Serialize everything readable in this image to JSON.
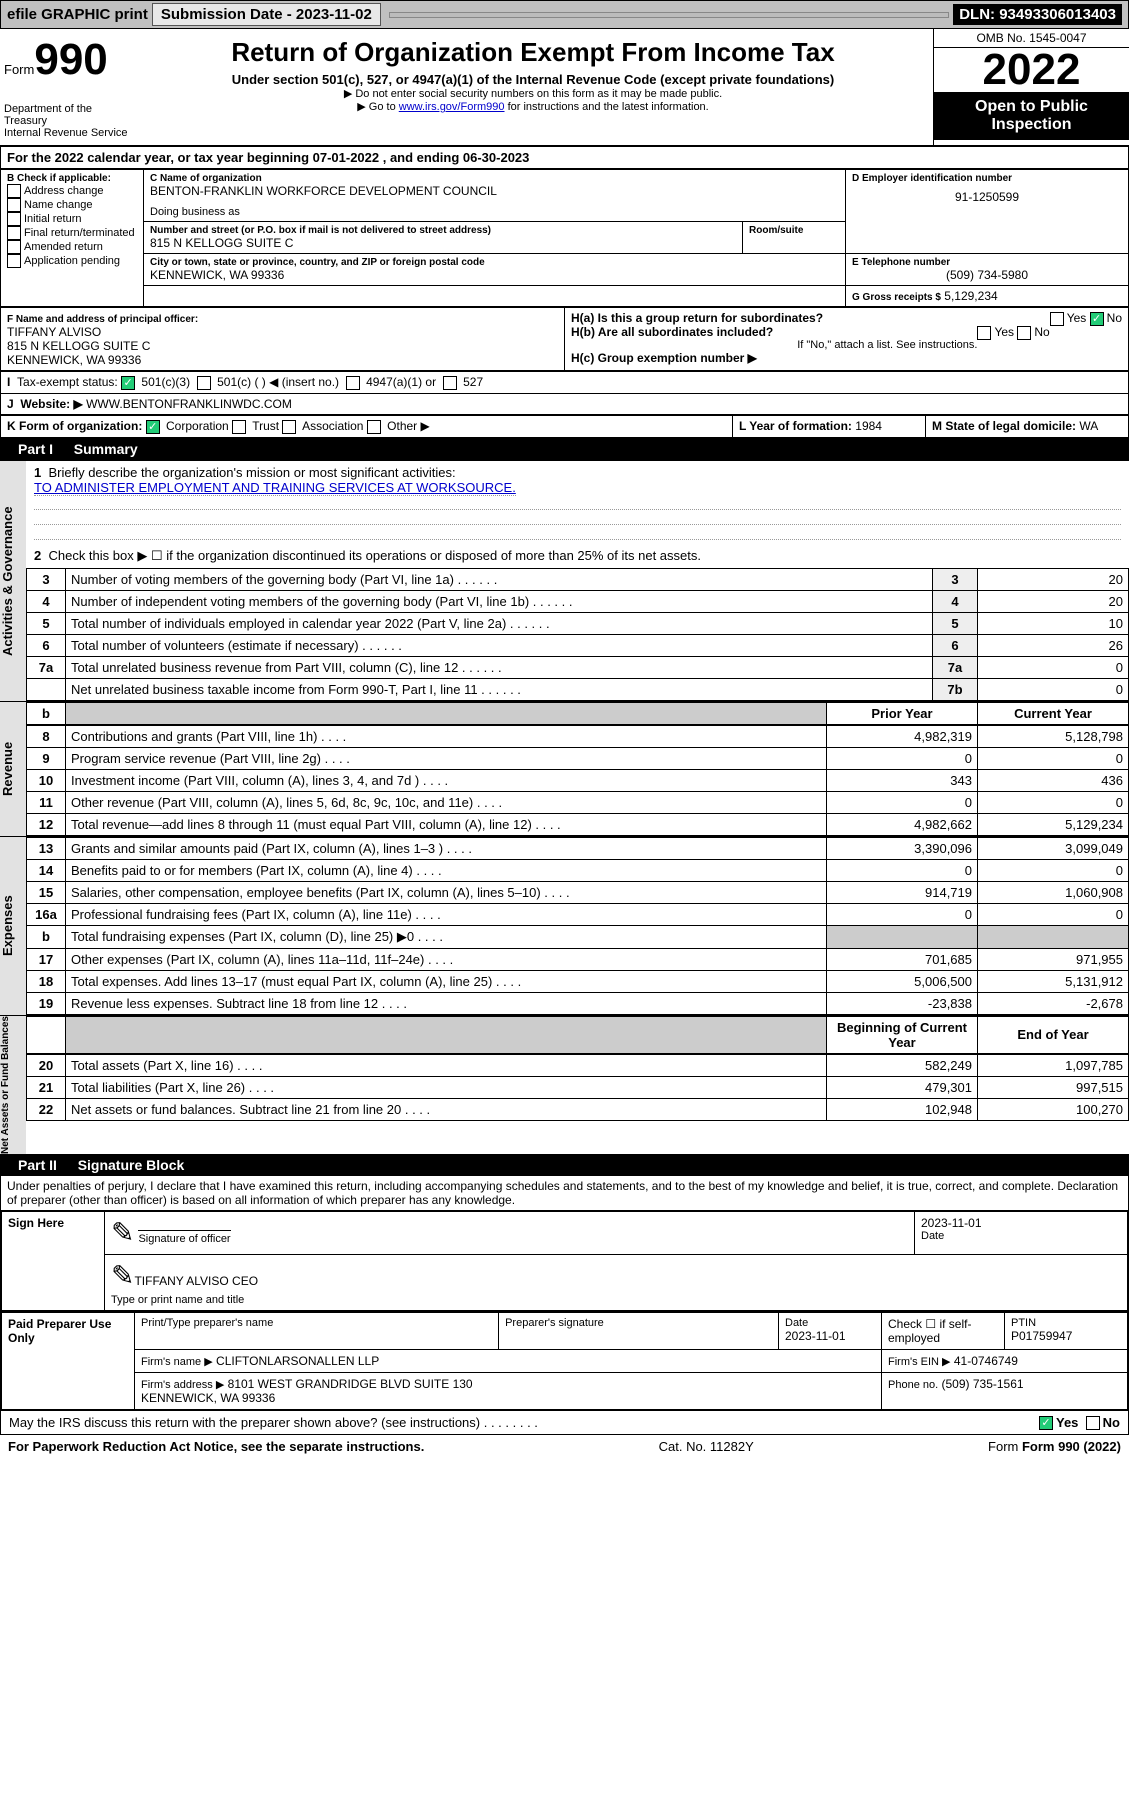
{
  "topbar": {
    "efile": "efile GRAPHIC print",
    "subdate_label": "Submission Date - ",
    "subdate": "2023-11-02",
    "dln": "DLN: 93493306013403"
  },
  "header": {
    "form_prefix": "Form",
    "form_no": "990",
    "title": "Return of Organization Exempt From Income Tax",
    "sub1": "Under section 501(c), 527, or 4947(a)(1) of the Internal Revenue Code (except private foundations)",
    "sub2": "▶ Do not enter social security numbers on this form as it may be made public.",
    "sub3_pre": "▶ Go to ",
    "sub3_link": "www.irs.gov/Form990",
    "sub3_post": " for instructions and the latest information.",
    "dept": "Department of the Treasury\nInternal Revenue Service",
    "omb": "OMB No. 1545-0047",
    "year": "2022",
    "inspect": "Open to Public Inspection"
  },
  "period": {
    "text": "For the 2022 calendar year, or tax year beginning 07-01-2022   , and ending 06-30-2023"
  },
  "checkB": {
    "label": "B Check if applicable:",
    "items": [
      "Address change",
      "Name change",
      "Initial return",
      "Final return/terminated",
      "Amended return",
      "Application pending"
    ]
  },
  "entity": {
    "c_label": "C Name of organization",
    "name": "BENTON-FRANKLIN WORKFORCE DEVELOPMENT COUNCIL",
    "dba": "Doing business as",
    "addr_label": "Number and street (or P.O. box if mail is not delivered to street address)",
    "addr": "815 N KELLOGG SUITE C",
    "room": "Room/suite",
    "city_label": "City or town, state or province, country, and ZIP or foreign postal code",
    "city": "KENNEWICK, WA  99336",
    "d_label": "D Employer identification number",
    "ein": "91-1250599",
    "e_label": "E Telephone number",
    "phone": "(509) 734-5980",
    "g_label": "G Gross receipts $",
    "gross": "5,129,234"
  },
  "officer": {
    "f_label": "F  Name and address of principal officer:",
    "name": "TIFFANY ALVISO",
    "addr1": "815 N KELLOGG SUITE C",
    "addr2": "KENNEWICK, WA  99336"
  },
  "h": {
    "a": "H(a)  Is this a group return for subordinates?",
    "a_yn": [
      "Yes",
      "No"
    ],
    "b": "H(b)  Are all subordinates included?",
    "b_yn": [
      "Yes",
      "No"
    ],
    "note": "If \"No,\" attach a list. See instructions.",
    "c": "H(c)  Group exemption number ▶"
  },
  "status": {
    "label": "Tax-exempt status:",
    "opts": [
      "501(c)(3)",
      "501(c) (   ) ◀ (insert no.)",
      "4947(a)(1) or",
      "527"
    ]
  },
  "website": {
    "label": "Website: ▶",
    "url": "WWW.BENTONFRANKLINWDC.COM"
  },
  "formorg": {
    "label": "K Form of organization:",
    "opts": [
      "Corporation",
      "Trust",
      "Association",
      "Other ▶"
    ]
  },
  "ly": {
    "label": "L Year of formation:",
    "v": "1984"
  },
  "ms": {
    "label": "M State of legal domicile:",
    "v": "WA"
  },
  "part1": {
    "title": "Part I",
    "head": "Summary"
  },
  "mission": {
    "q": "Briefly describe the organization's mission or most significant activities:",
    "a": "TO ADMINISTER EMPLOYMENT AND TRAINING SERVICES AT WORKSOURCE."
  },
  "l2": "Check this box ▶ ☐  if the organization discontinued its operations or disposed of more than 25% of its net assets.",
  "gov_rows": [
    {
      "n": "3",
      "t": "Number of voting members of the governing body (Part VI, line 1a)",
      "k": "3",
      "v": "20"
    },
    {
      "n": "4",
      "t": "Number of independent voting members of the governing body (Part VI, line 1b)",
      "k": "4",
      "v": "20"
    },
    {
      "n": "5",
      "t": "Total number of individuals employed in calendar year 2022 (Part V, line 2a)",
      "k": "5",
      "v": "10"
    },
    {
      "n": "6",
      "t": "Total number of volunteers (estimate if necessary)",
      "k": "6",
      "v": "26"
    },
    {
      "n": "7a",
      "t": "Total unrelated business revenue from Part VIII, column (C), line 12",
      "k": "7a",
      "v": "0"
    },
    {
      "n": "",
      "t": "Net unrelated business taxable income from Form 990-T, Part I, line 11",
      "k": "7b",
      "v": "0"
    }
  ],
  "rev_head": {
    "prior": "Prior Year",
    "curr": "Current Year"
  },
  "rev_rows": [
    {
      "n": "8",
      "t": "Contributions and grants (Part VIII, line 1h)",
      "p": "4,982,319",
      "c": "5,128,798"
    },
    {
      "n": "9",
      "t": "Program service revenue (Part VIII, line 2g)",
      "p": "0",
      "c": "0"
    },
    {
      "n": "10",
      "t": "Investment income (Part VIII, column (A), lines 3, 4, and 7d )",
      "p": "343",
      "c": "436"
    },
    {
      "n": "11",
      "t": "Other revenue (Part VIII, column (A), lines 5, 6d, 8c, 9c, 10c, and 11e)",
      "p": "0",
      "c": "0"
    },
    {
      "n": "12",
      "t": "Total revenue—add lines 8 through 11 (must equal Part VIII, column (A), line 12)",
      "p": "4,982,662",
      "c": "5,129,234"
    }
  ],
  "exp_rows": [
    {
      "n": "13",
      "t": "Grants and similar amounts paid (Part IX, column (A), lines 1–3 )",
      "p": "3,390,096",
      "c": "3,099,049"
    },
    {
      "n": "14",
      "t": "Benefits paid to or for members (Part IX, column (A), line 4)",
      "p": "0",
      "c": "0"
    },
    {
      "n": "15",
      "t": "Salaries, other compensation, employee benefits (Part IX, column (A), lines 5–10)",
      "p": "914,719",
      "c": "1,060,908"
    },
    {
      "n": "16a",
      "t": "Professional fundraising fees (Part IX, column (A), line 11e)",
      "p": "0",
      "c": "0"
    },
    {
      "n": "b",
      "t": "Total fundraising expenses (Part IX, column (D), line 25) ▶0",
      "p": "",
      "c": "",
      "shade": true
    },
    {
      "n": "17",
      "t": "Other expenses (Part IX, column (A), lines 11a–11d, 11f–24e)",
      "p": "701,685",
      "c": "971,955"
    },
    {
      "n": "18",
      "t": "Total expenses. Add lines 13–17 (must equal Part IX, column (A), line 25)",
      "p": "5,006,500",
      "c": "5,131,912"
    },
    {
      "n": "19",
      "t": "Revenue less expenses. Subtract line 18 from line 12",
      "p": "-23,838",
      "c": "-2,678"
    }
  ],
  "net_head": {
    "b": "Beginning of Current Year",
    "e": "End of Year"
  },
  "net_rows": [
    {
      "n": "20",
      "t": "Total assets (Part X, line 16)",
      "p": "582,249",
      "c": "1,097,785"
    },
    {
      "n": "21",
      "t": "Total liabilities (Part X, line 26)",
      "p": "479,301",
      "c": "997,515"
    },
    {
      "n": "22",
      "t": "Net assets or fund balances. Subtract line 21 from line 20",
      "p": "102,948",
      "c": "100,270"
    }
  ],
  "tabs": {
    "gov": "Activities & Governance",
    "rev": "Revenue",
    "exp": "Expenses",
    "net": "Net Assets or Fund Balances"
  },
  "part2": {
    "title": "Part II",
    "head": "Signature Block"
  },
  "perjury": "Under penalties of perjury, I declare that I have examined this return, including accompanying schedules and statements, and to the best of my knowledge and belief, it is true, correct, and complete. Declaration of preparer (other than officer) is based on all information of which preparer has any knowledge.",
  "sign": {
    "here": "Sign Here",
    "sig_label": "Signature of officer",
    "date": "2023-11-01",
    "date_label": "Date",
    "name": "TIFFANY ALVISO  CEO",
    "name_label": "Type or print name and title"
  },
  "prep": {
    "here": "Paid Preparer Use Only",
    "pt": "Print/Type preparer's name",
    "ps": "Preparer's signature",
    "dt": "Date",
    "dtv": "2023-11-01",
    "chk": "Check ☐ if self-employed",
    "ptin_l": "PTIN",
    "ptin": "P01759947",
    "firm_l": "Firm's name     ▶",
    "firm": "CLIFTONLARSONALLEN LLP",
    "fein_l": "Firm's EIN ▶",
    "fein": "41-0746749",
    "addr_l": "Firm's address ▶",
    "addr": "8101 WEST GRANDRIDGE BLVD SUITE 130\nKENNEWICK, WA  99336",
    "ph_l": "Phone no.",
    "ph": "(509) 735-1561"
  },
  "discuss": {
    "q": "May the IRS discuss this return with the preparer shown above? (see instructions)",
    "y": "Yes",
    "n": "No"
  },
  "footer": {
    "l": "For Paperwork Reduction Act Notice, see the separate instructions.",
    "c": "Cat. No. 11282Y",
    "r": "Form 990 (2022)"
  }
}
